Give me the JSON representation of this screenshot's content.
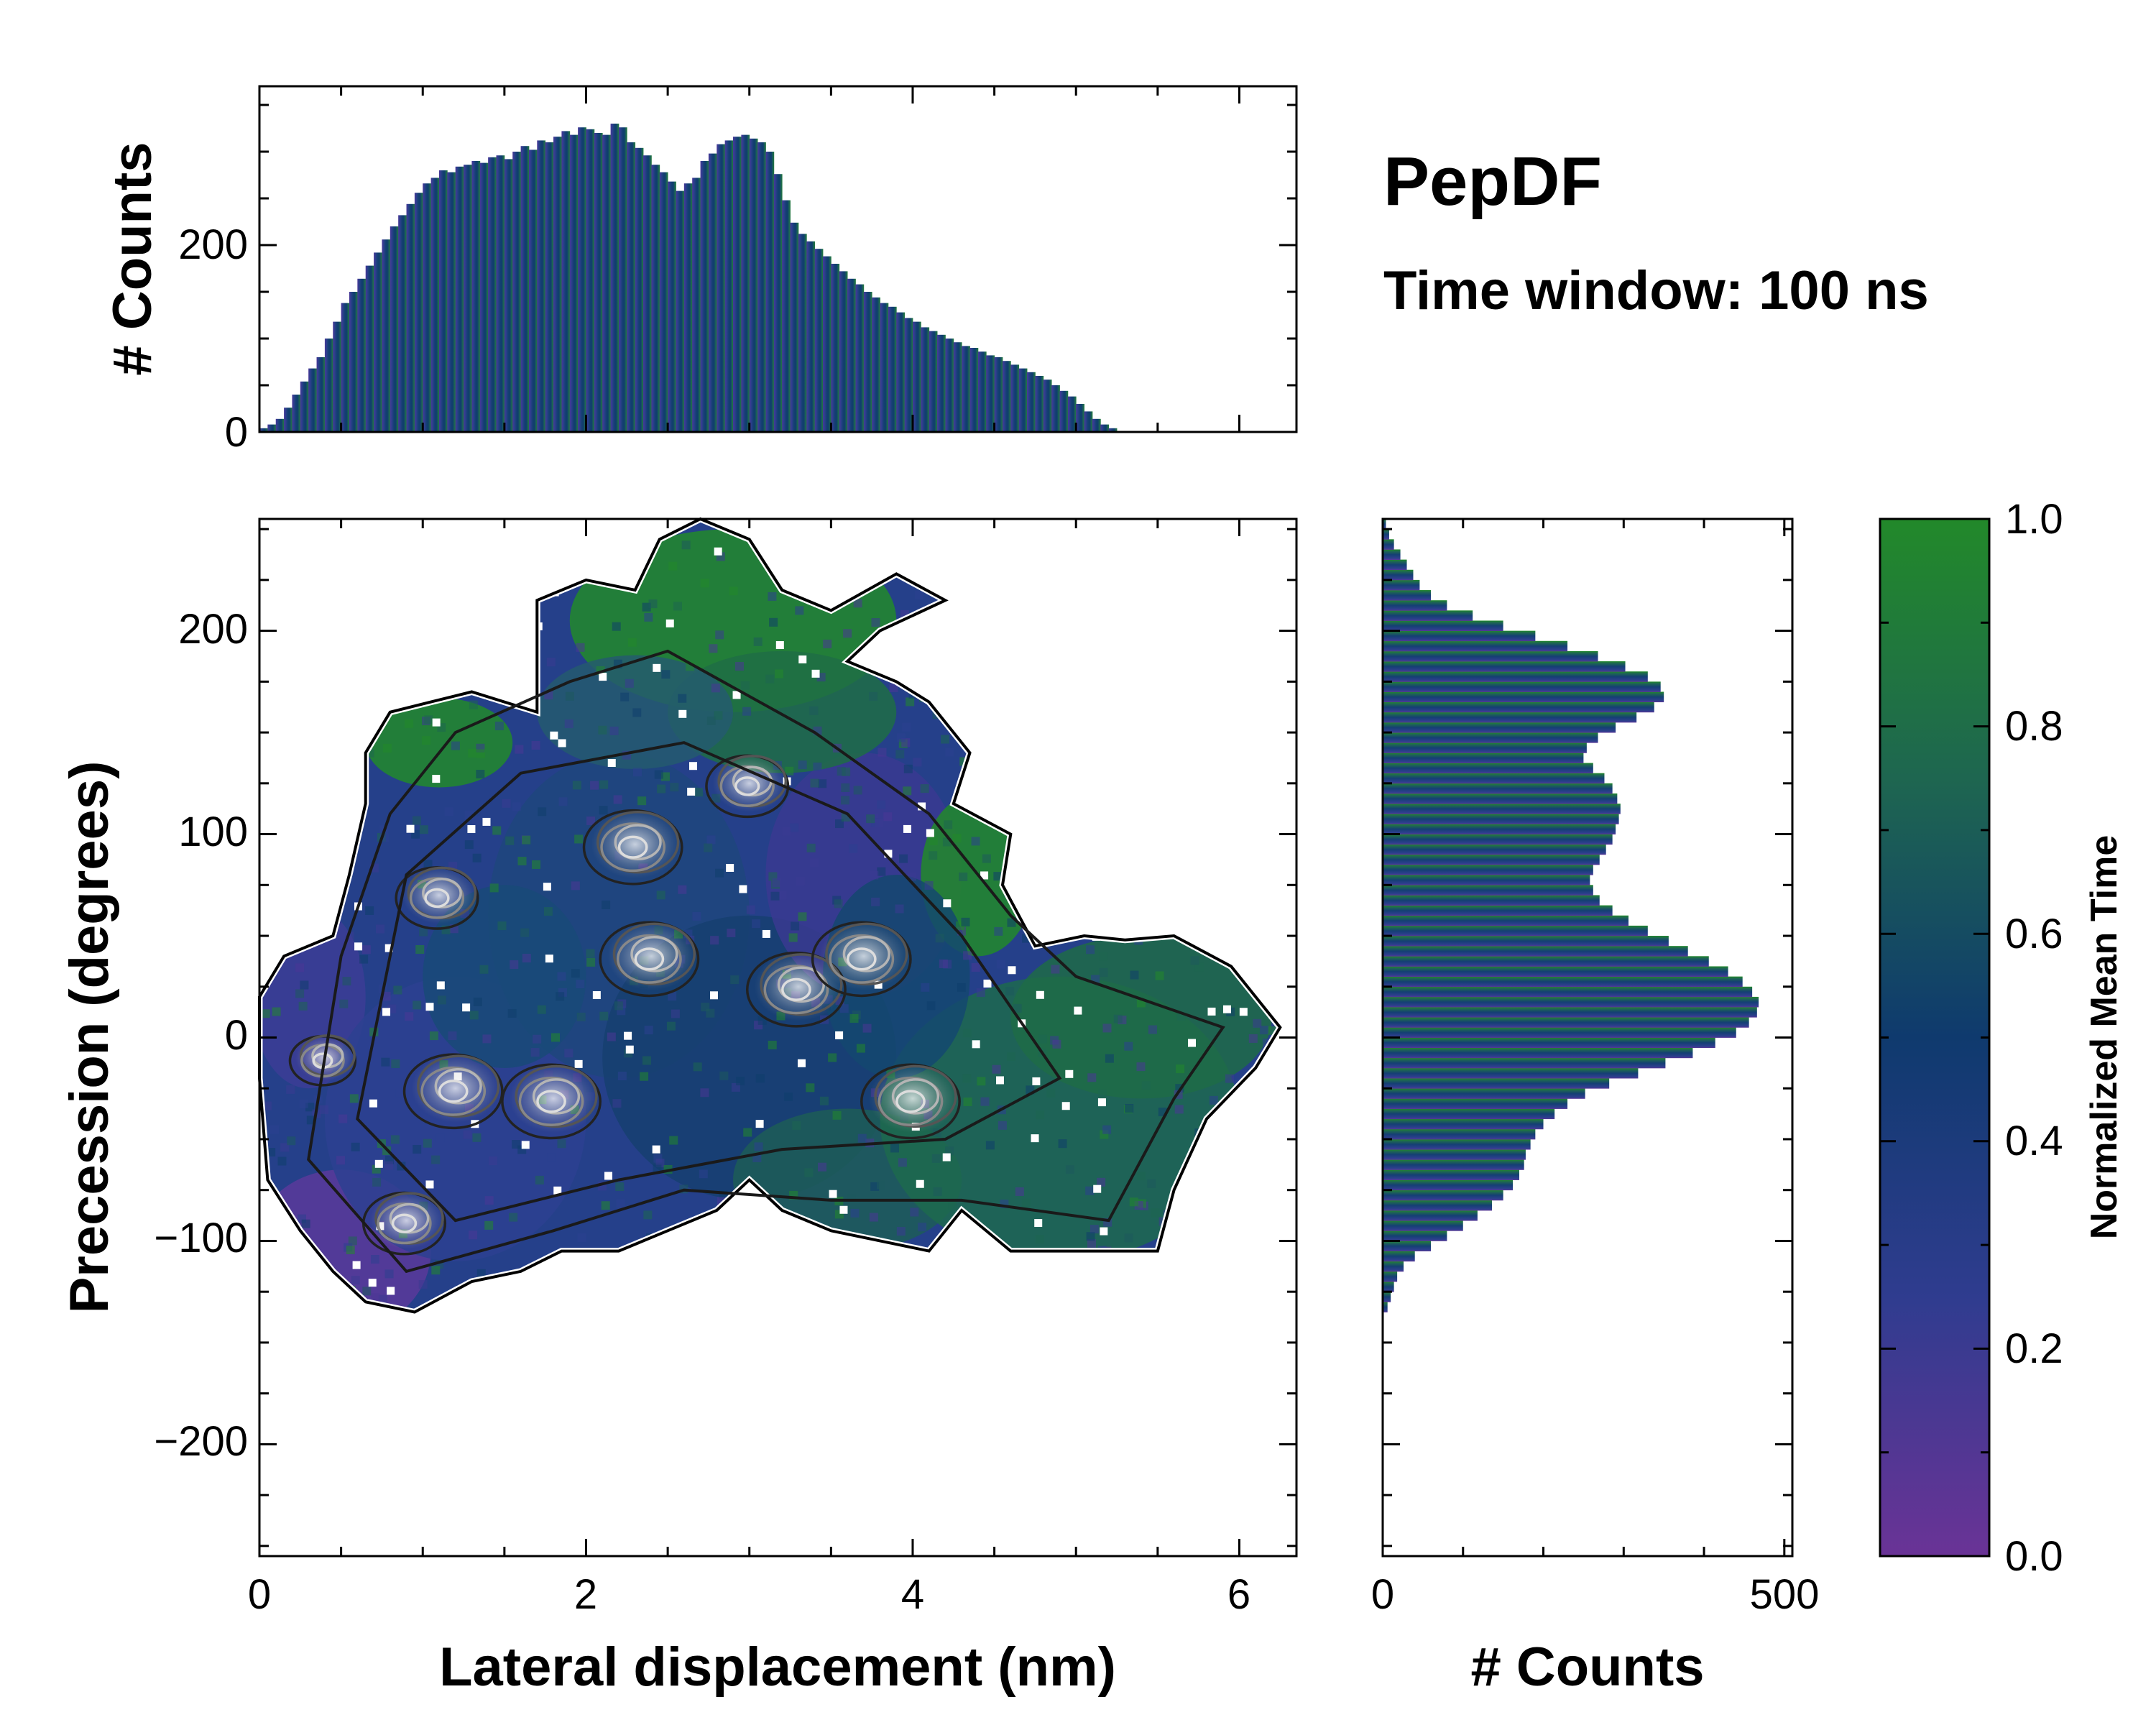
{
  "title": "PepDF",
  "subtitle": "Time window: 100 ns",
  "chart_data": [
    {
      "id": "top-histogram",
      "type": "bar",
      "title": "",
      "xlabel": "",
      "ylabel": "# Counts",
      "xlim": [
        0,
        6.35
      ],
      "ylim": [
        0,
        370
      ],
      "yticks": [
        "0",
        "200"
      ],
      "x_start": 0.0,
      "bin_width": 0.05,
      "values": [
        4,
        8,
        14,
        26,
        40,
        54,
        68,
        80,
        100,
        118,
        138,
        150,
        164,
        178,
        192,
        206,
        220,
        232,
        244,
        256,
        266,
        272,
        280,
        278,
        284,
        286,
        290,
        288,
        294,
        296,
        292,
        300,
        306,
        302,
        312,
        310,
        316,
        322,
        318,
        326,
        324,
        320,
        318,
        330,
        326,
        310,
        304,
        296,
        286,
        278,
        268,
        258,
        266,
        272,
        290,
        298,
        308,
        312,
        316,
        318,
        314,
        310,
        300,
        276,
        248,
        224,
        212,
        204,
        196,
        188,
        180,
        172,
        164,
        158,
        150,
        144,
        138,
        134,
        128,
        122,
        118,
        112,
        108,
        104,
        100,
        96,
        92,
        90,
        86,
        82,
        80,
        76,
        72,
        68,
        64,
        60,
        56,
        50,
        44,
        38,
        30,
        22,
        14,
        8,
        4
      ]
    },
    {
      "id": "right-histogram",
      "type": "bar",
      "orientation": "horizontal",
      "xlabel": "# Counts",
      "ylabel": "",
      "xlim": [
        0,
        510
      ],
      "ylim": [
        -255,
        255
      ],
      "xticks": [
        "0",
        "500"
      ],
      "y_start": -135,
      "bin_width": 5,
      "values": [
        6,
        10,
        14,
        18,
        26,
        40,
        60,
        80,
        100,
        118,
        136,
        150,
        162,
        170,
        176,
        178,
        184,
        190,
        200,
        214,
        230,
        252,
        282,
        318,
        352,
        386,
        414,
        440,
        456,
        466,
        468,
        460,
        448,
        430,
        406,
        380,
        356,
        330,
        306,
        286,
        270,
        262,
        258,
        262,
        270,
        278,
        286,
        290,
        294,
        296,
        292,
        286,
        276,
        262,
        250,
        254,
        268,
        290,
        316,
        338,
        350,
        346,
        330,
        302,
        268,
        230,
        190,
        150,
        112,
        80,
        60,
        46,
        38,
        30,
        22,
        14,
        8,
        4
      ]
    },
    {
      "id": "main-heatmap",
      "type": "heatmap",
      "xlabel": "Lateral displacement (nm)",
      "ylabel": "Precession (degrees)",
      "xlim": [
        0,
        6.35
      ],
      "ylim": [
        -255,
        255
      ],
      "xticks": [
        "0",
        "2",
        "4",
        "6"
      ],
      "yticks": [
        "−200",
        "−100",
        "0",
        "100",
        "200"
      ],
      "colorbar": {
        "label": "Normalized Mean Time",
        "range": [
          0.0,
          1.0
        ],
        "ticks": [
          "0.0",
          "0.2",
          "0.4",
          "0.6",
          "0.8",
          "1.0"
        ],
        "colors": [
          "#6a3396",
          "#2f3c8f",
          "#0f3a6e",
          "#1e6650",
          "#22892a"
        ]
      },
      "density_peaks": [
        {
          "x": 0.9,
          "y": -90,
          "w": 0.25
        },
        {
          "x": 1.2,
          "y": -25,
          "w": 0.3
        },
        {
          "x": 1.8,
          "y": -30,
          "w": 0.3
        },
        {
          "x": 2.4,
          "y": 40,
          "w": 0.3
        },
        {
          "x": 3.3,
          "y": 25,
          "w": 0.3
        },
        {
          "x": 3.7,
          "y": 40,
          "w": 0.3
        },
        {
          "x": 4.0,
          "y": -30,
          "w": 0.3
        },
        {
          "x": 2.3,
          "y": 95,
          "w": 0.3
        },
        {
          "x": 1.1,
          "y": 70,
          "w": 0.25
        },
        {
          "x": 3.0,
          "y": 125,
          "w": 0.25
        },
        {
          "x": 0.4,
          "y": -10,
          "w": 0.2
        }
      ]
    }
  ]
}
